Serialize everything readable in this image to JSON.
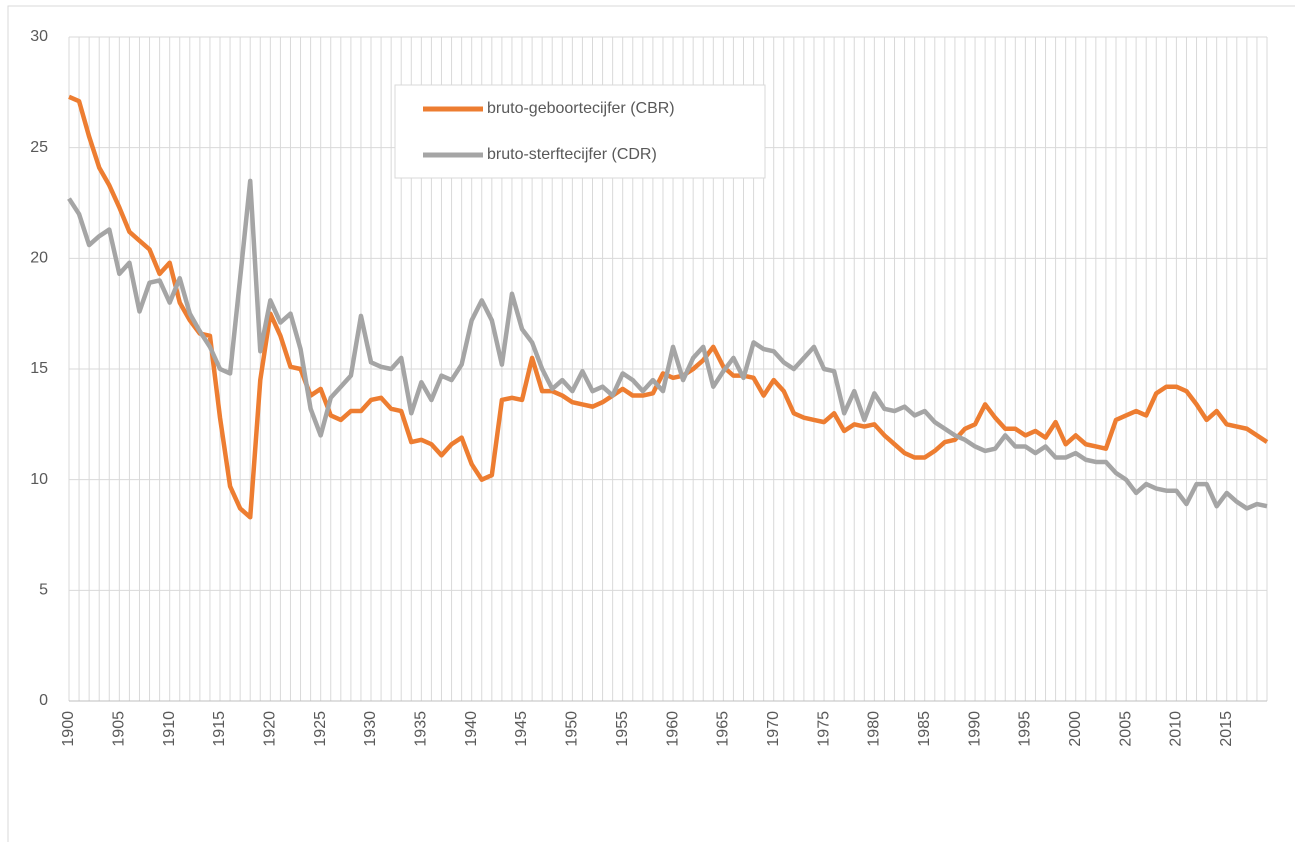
{
  "chart_data": {
    "type": "line",
    "x": [
      1900,
      1901,
      1902,
      1903,
      1904,
      1905,
      1906,
      1907,
      1908,
      1909,
      1910,
      1911,
      1912,
      1913,
      1914,
      1915,
      1916,
      1917,
      1918,
      1919,
      1920,
      1921,
      1922,
      1923,
      1924,
      1925,
      1926,
      1927,
      1928,
      1929,
      1930,
      1931,
      1932,
      1933,
      1934,
      1935,
      1936,
      1937,
      1938,
      1939,
      1940,
      1941,
      1942,
      1943,
      1944,
      1945,
      1946,
      1947,
      1948,
      1949,
      1950,
      1951,
      1952,
      1953,
      1954,
      1955,
      1956,
      1957,
      1958,
      1959,
      1960,
      1961,
      1962,
      1963,
      1964,
      1965,
      1966,
      1967,
      1968,
      1969,
      1970,
      1971,
      1972,
      1973,
      1974,
      1975,
      1976,
      1977,
      1978,
      1979,
      1980,
      1981,
      1982,
      1983,
      1984,
      1985,
      1986,
      1987,
      1988,
      1989,
      1990,
      1991,
      1992,
      1993,
      1994,
      1995,
      1996,
      1997,
      1998,
      1999,
      2000,
      2001,
      2002,
      2003,
      2004,
      2005,
      2006,
      2007,
      2008,
      2009,
      2010,
      2011,
      2012,
      2013,
      2014,
      2015,
      2016,
      2017,
      2018,
      2019
    ],
    "series": [
      {
        "name": "bruto-geboortecijfer (CBR)",
        "color": "#ed7d31",
        "values": [
          27.3,
          27.1,
          25.5,
          24.1,
          23.3,
          22.3,
          21.2,
          20.8,
          20.4,
          19.3,
          19.8,
          18.0,
          17.2,
          16.6,
          16.5,
          12.8,
          9.7,
          8.7,
          8.3,
          14.5,
          17.5,
          16.5,
          15.1,
          15.0,
          13.8,
          14.1,
          12.9,
          12.7,
          13.1,
          13.1,
          13.6,
          13.7,
          13.2,
          13.1,
          11.7,
          11.8,
          11.6,
          11.1,
          11.6,
          11.9,
          10.7,
          10.0,
          10.2,
          13.6,
          13.7,
          13.6,
          15.5,
          14.0,
          14.0,
          13.8,
          13.5,
          13.4,
          13.3,
          13.5,
          13.8,
          14.1,
          13.8,
          13.8,
          13.9,
          14.8,
          14.6,
          14.7,
          15.0,
          15.4,
          16.0,
          15.1,
          14.7,
          14.7,
          14.6,
          13.8,
          14.5,
          14.0,
          13.0,
          12.8,
          12.7,
          12.6,
          13.0,
          12.2,
          12.5,
          12.4,
          12.5,
          12.0,
          11.6,
          11.2,
          11.0,
          11.0,
          11.3,
          11.7,
          11.8,
          12.3,
          12.5,
          13.4,
          12.8,
          12.3,
          12.3,
          12.0,
          12.2,
          11.9,
          12.6,
          11.6,
          12.0,
          11.6,
          11.5,
          11.4,
          12.7,
          12.9,
          13.1,
          12.9,
          13.9,
          14.2,
          14.2,
          14.0,
          13.4,
          12.7,
          13.1,
          12.5,
          12.4,
          12.3,
          12.0,
          11.7
        ]
      },
      {
        "name": "bruto-sterftecijfer (CDR)",
        "color": "#a5a5a5",
        "values": [
          22.7,
          22.0,
          20.6,
          21.0,
          21.3,
          19.3,
          19.8,
          17.6,
          18.9,
          19.0,
          18.0,
          19.1,
          17.5,
          16.7,
          16.0,
          15.0,
          14.8,
          19.1,
          23.5,
          15.8,
          18.1,
          17.1,
          17.5,
          15.9,
          13.2,
          12.0,
          13.7,
          14.2,
          14.7,
          17.4,
          15.3,
          15.1,
          15.0,
          15.5,
          13.0,
          14.4,
          13.6,
          14.7,
          14.5,
          15.2,
          17.2,
          18.1,
          17.2,
          15.2,
          18.4,
          16.8,
          16.2,
          15.0,
          14.1,
          14.5,
          14.0,
          14.9,
          14.0,
          14.2,
          13.8,
          14.8,
          14.5,
          14.0,
          14.5,
          14.0,
          16.0,
          14.5,
          15.5,
          16.0,
          14.2,
          14.9,
          15.5,
          14.6,
          16.2,
          15.9,
          15.8,
          15.3,
          15.0,
          15.5,
          16.0,
          15.0,
          14.9,
          13.0,
          14.0,
          12.7,
          13.9,
          13.2,
          13.1,
          13.3,
          12.9,
          13.1,
          12.6,
          12.3,
          12.0,
          11.8,
          11.5,
          11.3,
          11.4,
          12.0,
          11.5,
          11.5,
          11.2,
          11.5,
          11.0,
          11.0,
          11.2,
          10.9,
          10.8,
          10.8,
          10.3,
          10.0,
          9.4,
          9.8,
          9.6,
          9.5,
          9.5,
          8.9,
          9.8,
          9.8,
          8.8,
          9.4,
          9.0,
          8.7,
          8.9,
          8.8
        ]
      }
    ],
    "xlim": [
      1900,
      2019
    ],
    "xticks": [
      1900,
      1905,
      1910,
      1915,
      1920,
      1925,
      1930,
      1935,
      1940,
      1945,
      1950,
      1955,
      1960,
      1965,
      1970,
      1975,
      1980,
      1985,
      1990,
      1995,
      2000,
      2005,
      2010,
      2015
    ],
    "ylim": [
      0,
      30
    ],
    "yticks": [
      0,
      5,
      10,
      15,
      20,
      25,
      30
    ],
    "grid": true,
    "legend": "top"
  }
}
